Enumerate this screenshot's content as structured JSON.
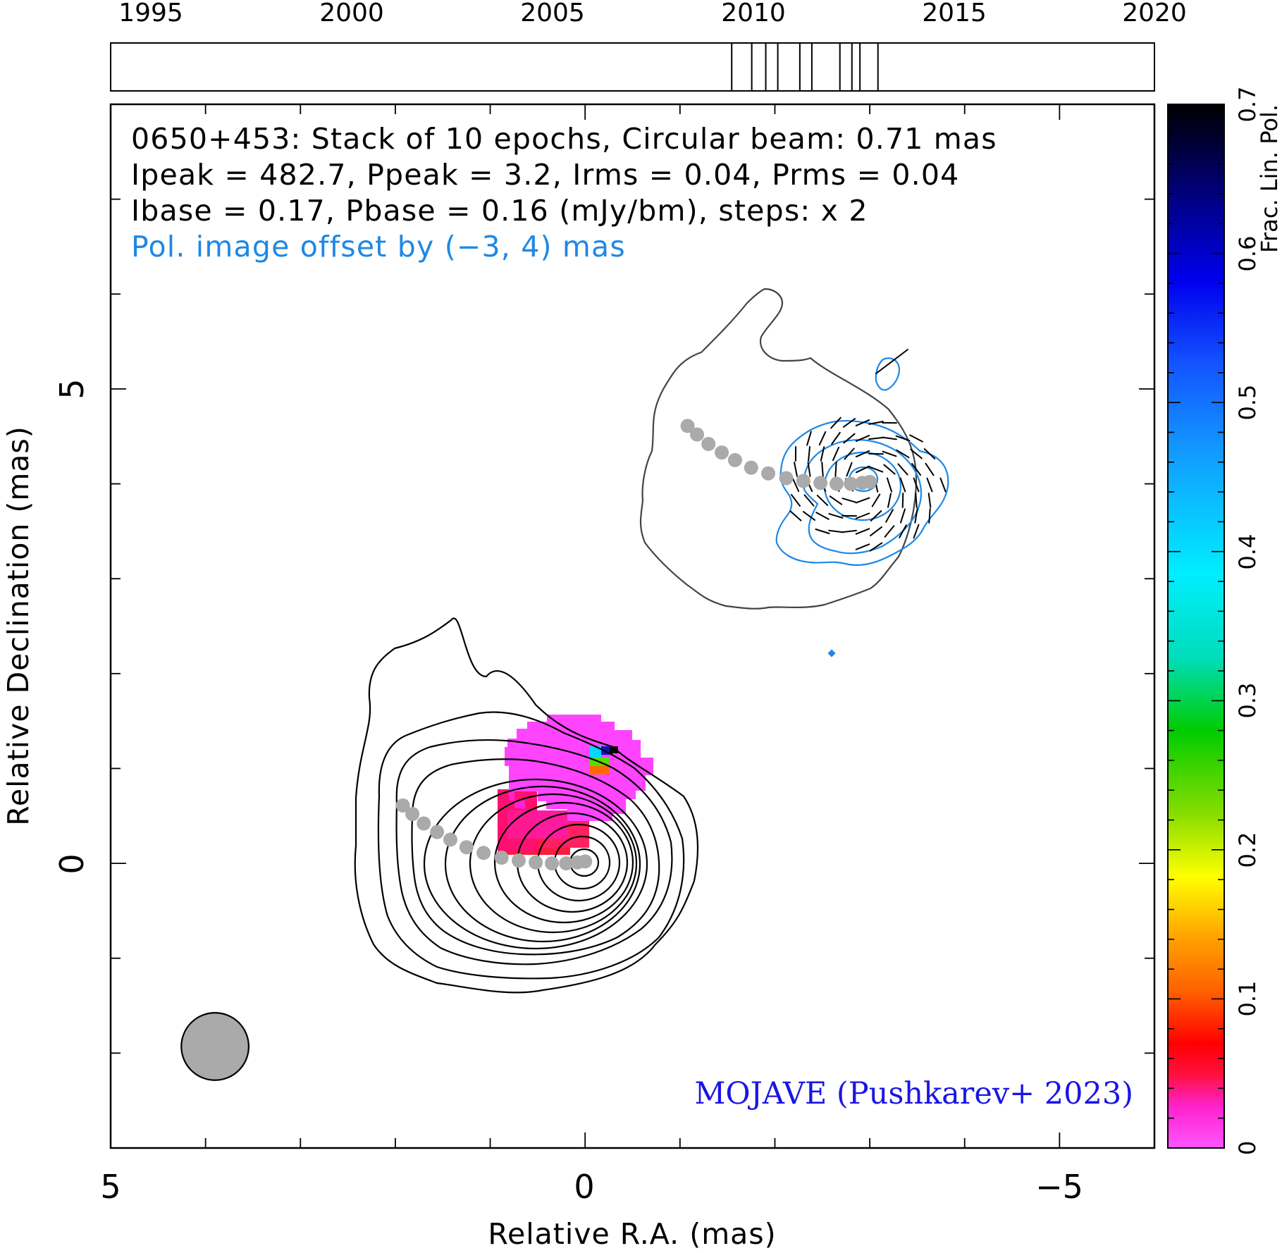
{
  "chart_data": {
    "type": "contour",
    "timeline": {
      "tick_labels": [
        "1995",
        "2000",
        "2005",
        "2010",
        "2015",
        "2020"
      ],
      "range": [
        1993.95,
        2020.0
      ],
      "epochs": [
        2009.45,
        2009.95,
        2010.3,
        2010.6,
        2011.15,
        2011.45,
        2012.15,
        2012.45,
        2012.65,
        2013.1
      ]
    },
    "annotations": {
      "line1": "0650+453: Stack of 10 epochs, Circular beam: 0.71 mas",
      "line2": "Ipeak = 482.7, Ppeak = 3.2, Irms = 0.04, Prms = 0.04",
      "line3": "Ibase = 0.17, Pbase = 0.16 (mJy/bm), steps: x 2",
      "line4": "Pol. image offset by (−3, 4) mas",
      "credit": "MOJAVE (Pushkarev+ 2023)"
    },
    "x_axis": {
      "label": "Relative R.A. (mas)",
      "range": [
        5,
        -6
      ],
      "tick_labels": [
        "5",
        "0",
        "−5"
      ],
      "tick_values": [
        5,
        0,
        -5
      ]
    },
    "y_axis": {
      "label": "Relative Declination (mas)",
      "range": [
        -3,
        8
      ],
      "tick_labels": [
        "0",
        "5"
      ],
      "tick_values": [
        0,
        5
      ]
    },
    "colorbar": {
      "label": "Frac. Lin. Pol.",
      "range": [
        0,
        0.7
      ],
      "tick_labels": [
        "0",
        "0.1",
        "0.2",
        "0.3",
        "0.4",
        "0.5",
        "0.6",
        "0.7"
      ],
      "tick_values": [
        0,
        0.1,
        0.2,
        0.3,
        0.4,
        0.5,
        0.6,
        0.7
      ]
    },
    "beam": {
      "x": 3.9,
      "y": -1.93,
      "diameter": 0.71
    },
    "stokes_i_contours": {
      "levels_mjy": [
        0.17,
        0.34,
        0.68,
        1.36,
        2.72,
        5.44,
        10.9,
        21.8,
        43.5,
        87.0,
        174.0,
        348.0
      ],
      "color": "#000000"
    },
    "offset_total_contour": {
      "color": "#444444"
    },
    "pol_contours": {
      "color": "#1e88e5",
      "count": 4
    },
    "ridge_line": {
      "color": "#aaaaaa",
      "points": [
        [
          1.92,
          0.61
        ],
        [
          1.82,
          0.52
        ],
        [
          1.7,
          0.42
        ],
        [
          1.56,
          0.33
        ],
        [
          1.42,
          0.25
        ],
        [
          1.25,
          0.17
        ],
        [
          1.07,
          0.11
        ],
        [
          0.88,
          0.06
        ],
        [
          0.7,
          0.03
        ],
        [
          0.52,
          0.01
        ],
        [
          0.35,
          0.0
        ],
        [
          0.2,
          0.0
        ],
        [
          0.08,
          0.01
        ],
        [
          0.0,
          0.02
        ]
      ]
    },
    "frac_pol_image": {
      "core_value": 0.0,
      "edge_value": 0.05,
      "knot_value": 0.62
    }
  }
}
